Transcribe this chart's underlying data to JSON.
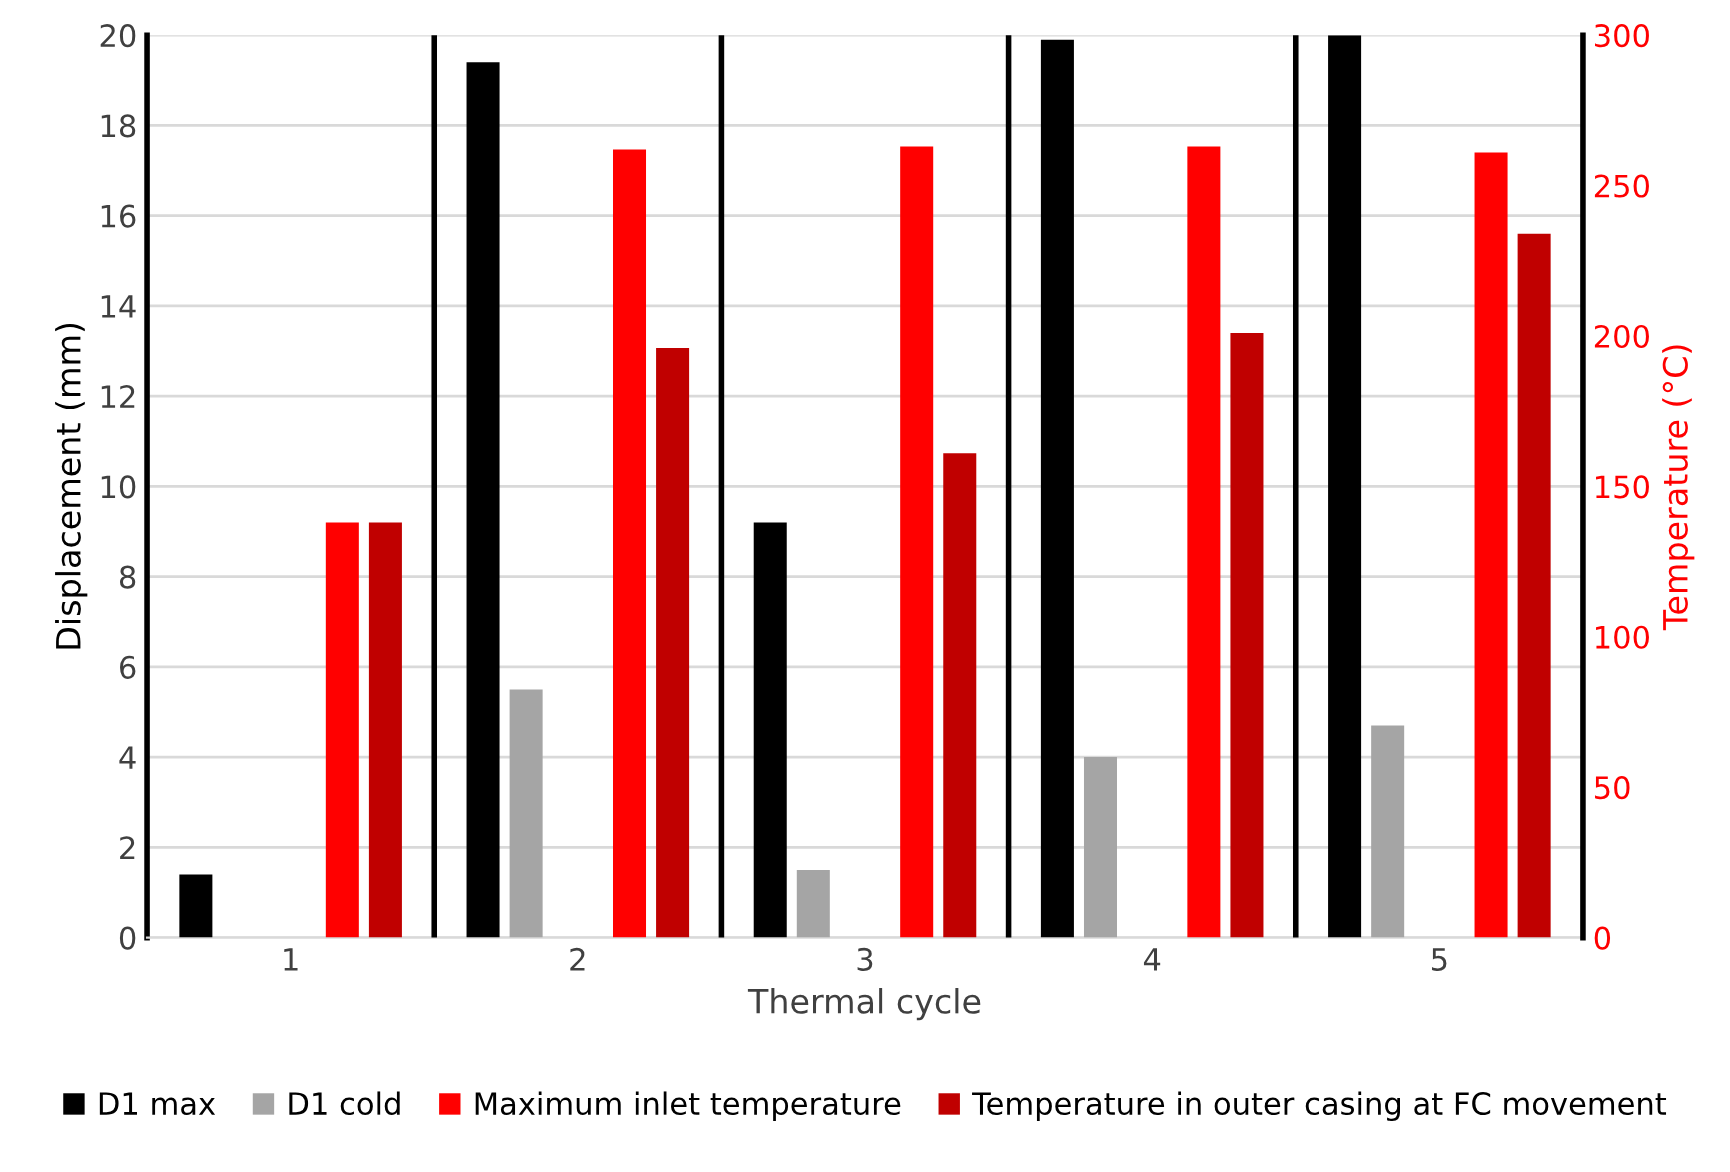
{
  "chart_data": {
    "type": "bar",
    "xlabel": "Thermal cycle",
    "ylabel": "Displacement (mm)",
    "y2label": "Temperature (°C)",
    "x": [
      1,
      2,
      3,
      4,
      5
    ],
    "xlim": [
      0.5,
      5.5
    ],
    "xticks": [
      1,
      2,
      3,
      4,
      5
    ],
    "ylim": [
      0,
      20
    ],
    "yticks": [
      0,
      2,
      4,
      6,
      8,
      10,
      12,
      14,
      16,
      18,
      20
    ],
    "y2lim": [
      0,
      300
    ],
    "y2ticks": [
      0,
      50,
      100,
      150,
      200,
      250,
      300
    ],
    "series": [
      {
        "name": "D1 max",
        "color": "#000000",
        "values": [
          1.4,
          19.4,
          9.2,
          19.9,
          20
        ]
      },
      {
        "name": "D1 cold",
        "color": "#a5a5a5",
        "values": [
          null,
          5.5,
          1.5,
          4.0,
          4.7
        ]
      },
      {
        "name": "Maximum inlet temperature",
        "color": "#ff0000",
        "axis": "y2",
        "values": [
          138,
          262,
          263,
          263,
          261
        ]
      },
      {
        "name": "Temperature in outer casing at FC movement",
        "color": "#c00000",
        "axis": "y2",
        "values": [
          138,
          196,
          161,
          201,
          234
        ]
      }
    ],
    "ref_lines": [
      {
        "axis": "x",
        "value": 1.5,
        "color": "#000000"
      },
      {
        "axis": "x",
        "value": 2.5,
        "color": "#000000"
      },
      {
        "axis": "x",
        "value": 3.5,
        "color": "#000000"
      },
      {
        "axis": "x",
        "value": 4.5,
        "color": "#000000"
      }
    ],
    "grid": "y",
    "legend": "bottom"
  }
}
